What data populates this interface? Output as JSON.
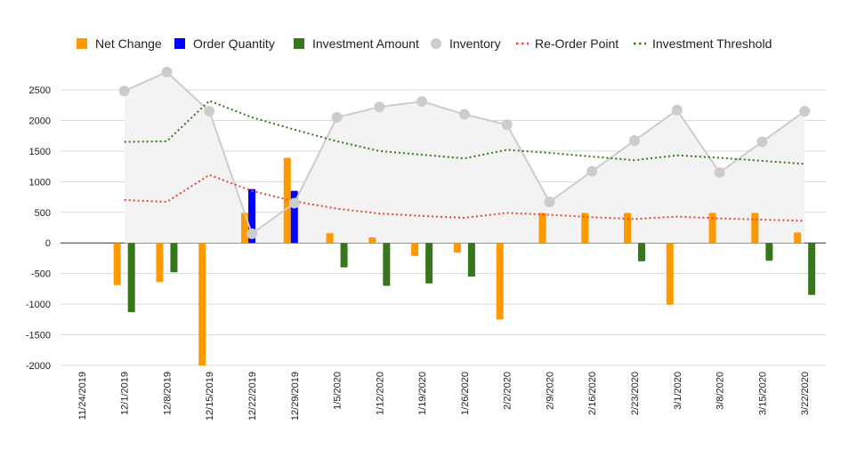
{
  "chart_data": {
    "type": "bar",
    "categories": [
      "11/24/2019",
      "12/1/2019",
      "12/8/2019",
      "12/15/2019",
      "12/22/2019",
      "12/29/2019",
      "1/5/2020",
      "1/12/2020",
      "1/19/2020",
      "1/26/2020",
      "2/2/2020",
      "2/9/2020",
      "2/16/2020",
      "2/23/2020",
      "3/1/2020",
      "3/8/2020",
      "3/15/2020",
      "3/22/2020"
    ],
    "ylim": [
      -2000,
      2500
    ],
    "yticks": [
      -2000,
      -1500,
      -1000,
      -500,
      0,
      500,
      1000,
      1500,
      2000,
      2500
    ],
    "grid": true,
    "legend_position": "top",
    "series": [
      {
        "name": "Net Change",
        "kind": "bar",
        "color": "#ff9900",
        "values": [
          null,
          -690,
          -640,
          -2000,
          490,
          1390,
          160,
          90,
          -210,
          -160,
          -1250,
          490,
          490,
          490,
          -1010,
          490,
          490,
          170
        ]
      },
      {
        "name": "Order Quantity",
        "kind": "bar",
        "color": "#0000ff",
        "values": [
          null,
          null,
          null,
          null,
          880,
          850,
          null,
          null,
          null,
          null,
          null,
          null,
          null,
          null,
          null,
          null,
          null,
          null
        ]
      },
      {
        "name": "Investment Amount",
        "kind": "bar",
        "color": "#38761d",
        "values": [
          null,
          -1130,
          -480,
          null,
          null,
          null,
          -400,
          -700,
          -660,
          -550,
          null,
          null,
          null,
          -300,
          null,
          null,
          -290,
          -850
        ]
      },
      {
        "name": "Inventory",
        "kind": "line-area",
        "color": "#cccccc",
        "fill": "#f3f3f3",
        "values": [
          null,
          2480,
          2790,
          2150,
          150,
          650,
          2050,
          2220,
          2310,
          2100,
          1930,
          670,
          1170,
          1670,
          2170,
          1150,
          1650,
          2150
        ]
      },
      {
        "name": "Re-Order Point",
        "kind": "dotted-line",
        "color": "#ea4335",
        "values": [
          null,
          700,
          670,
          1110,
          850,
          680,
          560,
          480,
          440,
          410,
          490,
          460,
          420,
          390,
          430,
          400,
          380,
          360
        ]
      },
      {
        "name": "Investment Threshold",
        "kind": "dotted-line",
        "color": "#38761d",
        "values": [
          null,
          1650,
          1660,
          2320,
          2050,
          1850,
          1660,
          1500,
          1440,
          1380,
          1520,
          1470,
          1410,
          1350,
          1430,
          1390,
          1340,
          1290
        ]
      }
    ]
  }
}
